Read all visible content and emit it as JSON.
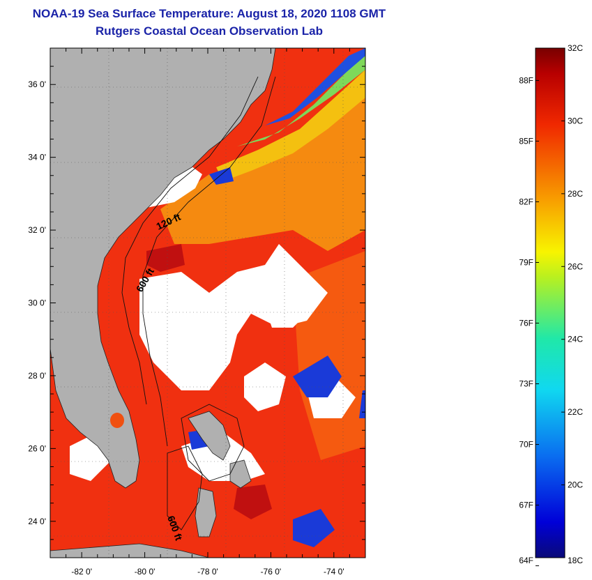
{
  "title": "NOAA-19 Sea Surface Temperature:  August 18, 2020 1108 GMT",
  "subtitle": "Rutgers Coastal Ocean Observation Lab",
  "colors": {
    "land": "#b0b0b0",
    "cloud": "#ffffff",
    "frame": "#000000",
    "title": "#1a23a8"
  },
  "map": {
    "lon_range": [
      -83,
      -73
    ],
    "lat_range": [
      23,
      37
    ],
    "lon_ticks": [
      {
        "value": -82,
        "label": "-82 0'"
      },
      {
        "value": -80,
        "label": "-80 0'"
      },
      {
        "value": -78,
        "label": "-78 0'"
      },
      {
        "value": -76,
        "label": "-76 0'"
      },
      {
        "value": -74,
        "label": "-74 0'"
      }
    ],
    "lat_ticks": [
      {
        "value": 36,
        "label": "36 0'"
      },
      {
        "value": 34,
        "label": "34 0'"
      },
      {
        "value": 32,
        "label": "32 0'"
      },
      {
        "value": 30,
        "label": "30 0'"
      },
      {
        "value": 28,
        "label": "28 0'"
      },
      {
        "value": 26,
        "label": "26 0'"
      },
      {
        "value": 24,
        "label": "24 0'"
      }
    ],
    "contour_labels": [
      "120 ft",
      "600 ft",
      "600 ft"
    ]
  },
  "colorbar": {
    "min_c": 18,
    "max_c": 32,
    "celsius_labels": [
      "32C",
      "30C",
      "28C",
      "26C",
      "24C",
      "22C",
      "20C",
      "18C"
    ],
    "fahrenheit_labels": [
      "88F",
      "85F",
      "82F",
      "79F",
      "76F",
      "73F",
      "70F",
      "67F",
      "64F"
    ],
    "fahrenheit_values": [
      88,
      85,
      82,
      79,
      76,
      73,
      70,
      67,
      64
    ]
  }
}
